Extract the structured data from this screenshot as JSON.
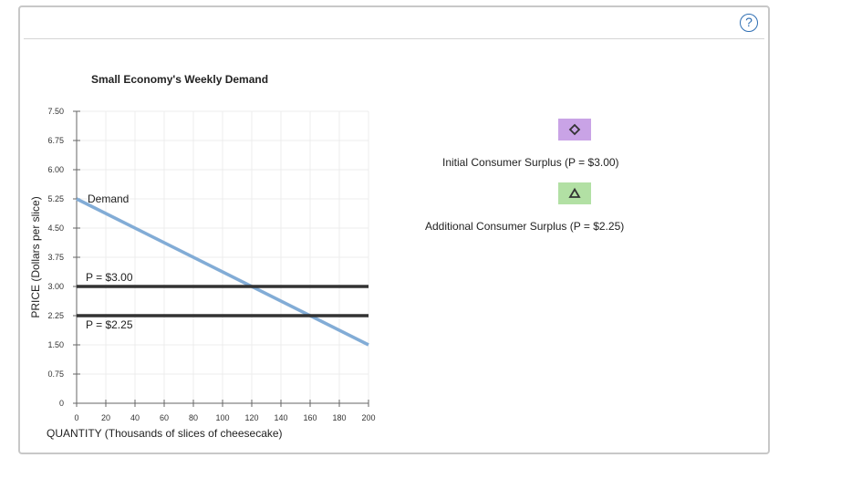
{
  "ui": {
    "help_label": "?",
    "help_icon": "question-mark-icon"
  },
  "colors": {
    "demand_line": "#82acd6",
    "price_line": "#333333",
    "grid": "#ececec",
    "initial_surplus_swatch": "#c9a3e6",
    "additional_surplus_swatch": "#b2e0a4"
  },
  "legend": {
    "items": [
      {
        "label": "Initial Consumer Surplus (P = $3.00)",
        "icon": "diamond-icon"
      },
      {
        "label": "Additional Consumer Surplus (P = $2.25)",
        "icon": "triangle-icon"
      }
    ]
  },
  "chart_data": {
    "type": "line",
    "title": "Small Economy's Weekly Demand",
    "xlabel": "QUANTITY (Thousands of slices of cheesecake)",
    "ylabel": "PRICE (Dollars per slice)",
    "xlim": [
      0,
      200
    ],
    "ylim": [
      0,
      7.5
    ],
    "x_ticks": [
      0,
      20,
      40,
      60,
      80,
      100,
      120,
      140,
      160,
      180,
      200
    ],
    "y_ticks": [
      0,
      0.75,
      1.5,
      2.25,
      3.0,
      3.75,
      4.5,
      5.25,
      6.0,
      6.75,
      7.5
    ],
    "x_tick_labels": [
      "0",
      "20",
      "40",
      "60",
      "80",
      "100",
      "120",
      "140",
      "160",
      "180",
      "200"
    ],
    "y_tick_labels": [
      "0",
      "0.75",
      "1.50",
      "2.25",
      "3.00",
      "3.75",
      "4.50",
      "5.25",
      "6.00",
      "6.75",
      "7.50"
    ],
    "grid": true,
    "series": [
      {
        "name": "Demand",
        "x": [
          0,
          200
        ],
        "y": [
          5.25,
          1.5
        ]
      },
      {
        "name": "P = $3.00",
        "x": [
          0,
          200
        ],
        "y": [
          3.0,
          3.0
        ]
      },
      {
        "name": "P = $2.25",
        "x": [
          0,
          200
        ],
        "y": [
          2.25,
          2.25
        ]
      }
    ]
  }
}
